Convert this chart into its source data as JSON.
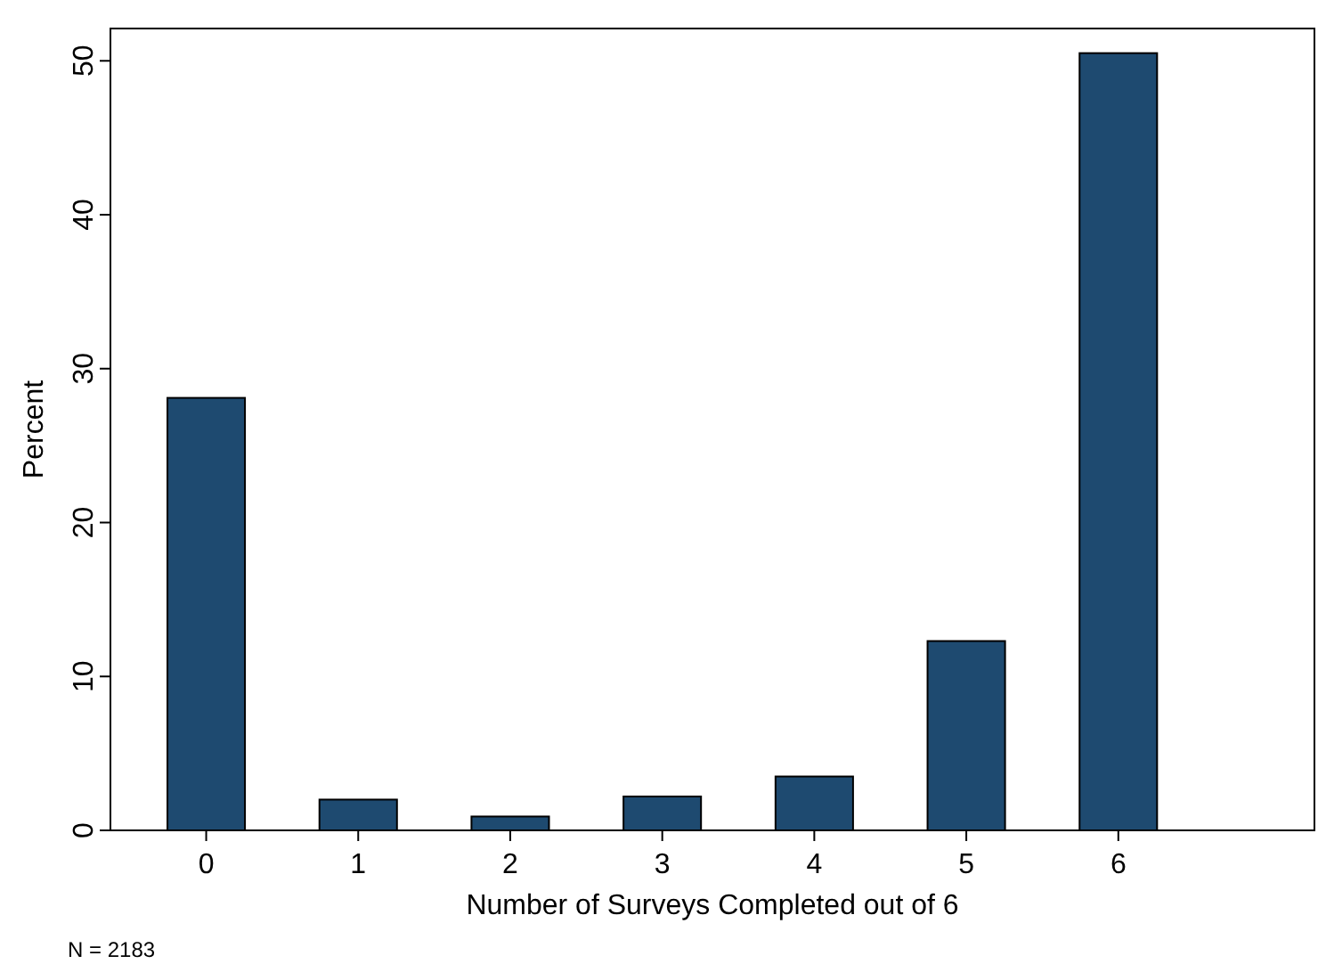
{
  "chart_data": {
    "type": "bar",
    "xlabel": "Number of Surveys Completed out of 6",
    "ylabel": "Percent",
    "categories": [
      "0",
      "1",
      "2",
      "3",
      "4",
      "5",
      "6"
    ],
    "values": [
      28.1,
      2.0,
      0.9,
      2.2,
      3.5,
      12.3,
      50.5
    ],
    "color": "#1e4a70",
    "ylim": [
      0,
      52.1
    ],
    "yticks": [
      0,
      10,
      20,
      30,
      40,
      50
    ],
    "grid": false,
    "annotations": [
      "N = 2183"
    ]
  }
}
